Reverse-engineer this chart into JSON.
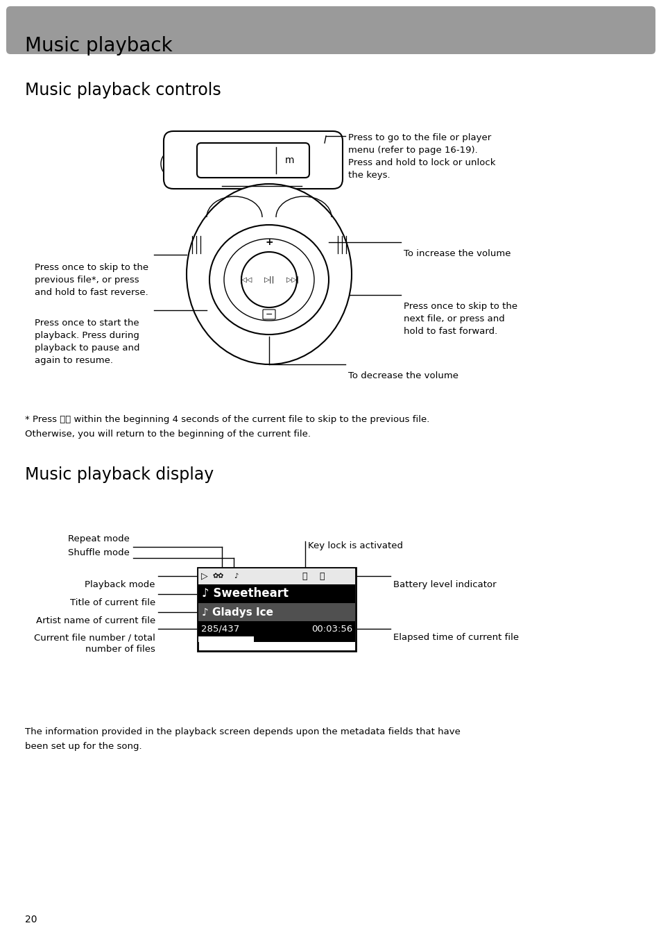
{
  "page_title": "Music playback",
  "section1_title": "Music playback controls",
  "section2_title": "Music playback display",
  "header_bg_color": "#9a9a9a",
  "body_bg_color": "#ffffff",
  "page_number": "20",
  "footnote_line1": "* Press ⏮⏮ within the beginning 4 seconds of the current file to skip to the previous file.",
  "footnote_line2": "Otherwise, you will return to the beginning of the current file.",
  "bottom_text_line1": "The information provided in the playback screen depends upon the metadata fields that have",
  "bottom_text_line2": "been set up for the song.",
  "ctrl_top_right": "Press to go to the file or player\nmenu (refer to page 16-19).\nPress and hold to lock or unlock\nthe keys.",
  "ctrl_left_upper": "Press once to skip to the\nprevious file*, or press\nand hold to fast reverse.",
  "ctrl_left_lower": "Press once to start the\nplayback. Press during\nplayback to pause and\nagain to resume.",
  "ctrl_right_upper": "To increase the volume",
  "ctrl_right_lower": "Press once to skip to the\nnext file, or press and\nhold to fast forward.",
  "ctrl_bottom": "To decrease the volume",
  "disp_repeat": "Repeat mode",
  "disp_shuffle": "Shuffle mode",
  "disp_playback": "Playback mode",
  "disp_title": "Title of current file",
  "disp_artist": "Artist name of current file",
  "disp_filenum": "Current file number / total\nnumber of files",
  "disp_keylock": "Key lock is activated",
  "disp_battery": "Battery level indicator",
  "disp_elapsed": "Elapsed time of current file",
  "screen_song": "Sweetheart",
  "screen_artist": "Gladys Ice",
  "screen_fileinfo": "285/437",
  "screen_time": "00:03:56"
}
